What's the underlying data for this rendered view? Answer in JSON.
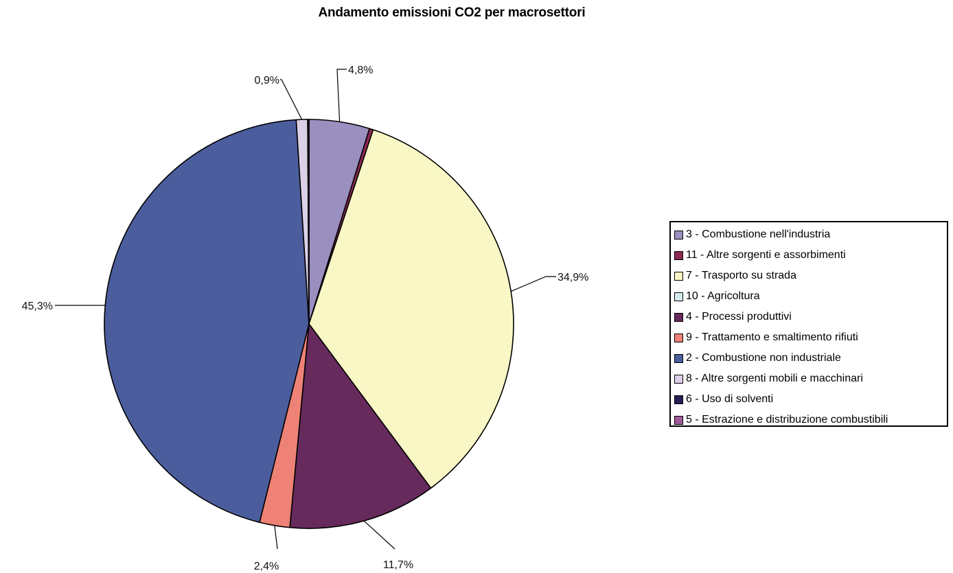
{
  "chart_data": {
    "type": "pie",
    "title": "Andamento emissioni CO2 per macrosettori",
    "legend_position": "right",
    "slices": [
      {
        "name": "3 - Combustione nell'industria",
        "value": 4.8,
        "label": "4,8%",
        "color": "#9b8fbf"
      },
      {
        "name": "11 - Altre sorgenti e assorbimenti",
        "value": 0.3,
        "label": "",
        "color": "#8e2a54"
      },
      {
        "name": "7 - Trasporto su strada",
        "value": 34.9,
        "label": "34,9%",
        "color": "#faf7c6"
      },
      {
        "name": "10 - Agricoltura",
        "value": 0.0,
        "label": "",
        "color": "#d4ebee"
      },
      {
        "name": "4 - Processi produttivi",
        "value": 11.7,
        "label": "11,7%",
        "color": "#662a5c"
      },
      {
        "name": "9 - Trattamento e smaltimento rifiuti",
        "value": 2.4,
        "label": "2,4%",
        "color": "#ee8276"
      },
      {
        "name": "2 - Combustione non industriale",
        "value": 45.3,
        "label": "45,3%",
        "color": "#4b5d9c"
      },
      {
        "name": "8 - Altre sorgenti mobili e macchinari",
        "value": 0.9,
        "label": "0,9%",
        "color": "#dcd0e8"
      },
      {
        "name": "6 - Uso di solventi",
        "value": 0.1,
        "label": "",
        "color": "#2a1c54"
      },
      {
        "name": "5 -  Estrazione e distribuzione combustibili",
        "value": 0.0,
        "label": "",
        "color": "#a05a9c"
      }
    ]
  }
}
